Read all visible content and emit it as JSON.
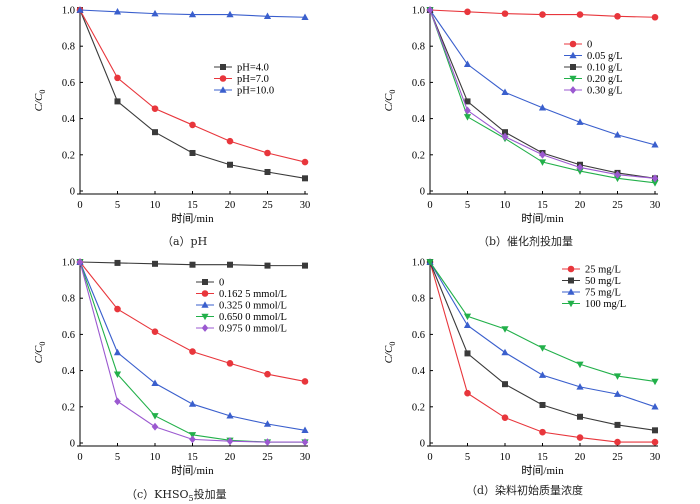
{
  "chart_data": [
    {
      "id": "a",
      "type": "line",
      "caption": "（a）pH",
      "xlabel": "时间/min",
      "ylabel": "C/C0",
      "xlim": [
        0,
        30
      ],
      "ylim": [
        0,
        1.0
      ],
      "xticks": [
        0,
        5,
        10,
        15,
        20,
        25,
        30
      ],
      "yticks": [
        0,
        0.2,
        0.4,
        0.6,
        0.8,
        1.0
      ],
      "x": [
        0,
        5,
        10,
        15,
        20,
        25,
        30
      ],
      "legend_position": "middle-right",
      "series": [
        {
          "name": "pH=4.0",
          "color": "#3a3a3a",
          "marker": "square",
          "values": [
            1.0,
            0.495,
            0.325,
            0.21,
            0.145,
            0.105,
            0.07
          ]
        },
        {
          "name": "pH=7.0",
          "color": "#e8363c",
          "marker": "circle",
          "values": [
            1.0,
            0.625,
            0.455,
            0.365,
            0.275,
            0.21,
            0.16
          ]
        },
        {
          "name": "pH=10.0",
          "color": "#3a5fcd",
          "marker": "triangle-up",
          "values": [
            1.0,
            0.99,
            0.98,
            0.975,
            0.975,
            0.965,
            0.96
          ]
        }
      ]
    },
    {
      "id": "b",
      "type": "line",
      "caption": "（b）催化剂投加量",
      "xlabel": "时间/min",
      "ylabel": "C/C0",
      "xlim": [
        0,
        30
      ],
      "ylim": [
        0,
        1.0
      ],
      "xticks": [
        0,
        5,
        10,
        15,
        20,
        25,
        30
      ],
      "yticks": [
        0,
        0.2,
        0.4,
        0.6,
        0.8,
        1.0
      ],
      "x": [
        0,
        5,
        10,
        15,
        20,
        25,
        30
      ],
      "legend_position": "upper-right",
      "series": [
        {
          "name": "0",
          "color": "#e8363c",
          "marker": "circle",
          "values": [
            1.0,
            0.99,
            0.98,
            0.975,
            0.975,
            0.965,
            0.96
          ]
        },
        {
          "name": "0.05 g/L",
          "color": "#3a5fcd",
          "marker": "triangle-up",
          "values": [
            1.0,
            0.7,
            0.545,
            0.46,
            0.38,
            0.31,
            0.255
          ]
        },
        {
          "name": "0.10 g/L",
          "color": "#3a3a3a",
          "marker": "square",
          "values": [
            1.0,
            0.495,
            0.325,
            0.21,
            0.145,
            0.1,
            0.07
          ]
        },
        {
          "name": "0.20 g/L",
          "color": "#22b04a",
          "marker": "triangle-down",
          "values": [
            1.0,
            0.41,
            0.29,
            0.16,
            0.11,
            0.07,
            0.045
          ]
        },
        {
          "name": "0.30 g/L",
          "color": "#9b59d0",
          "marker": "diamond",
          "values": [
            1.0,
            0.445,
            0.3,
            0.2,
            0.13,
            0.09,
            0.07
          ]
        }
      ]
    },
    {
      "id": "c",
      "type": "line",
      "caption": "（c）KHSO5投加量",
      "caption_main": "（c）KHSO",
      "caption_sub": "5",
      "caption_tail": "投加量",
      "xlabel": "时间/min",
      "ylabel": "C/C0",
      "xlim": [
        0,
        30
      ],
      "ylim": [
        0,
        1.0
      ],
      "xticks": [
        0,
        5,
        10,
        15,
        20,
        25,
        30
      ],
      "yticks": [
        0,
        0.2,
        0.4,
        0.6,
        0.8,
        1.0
      ],
      "x": [
        0,
        5,
        10,
        15,
        20,
        25,
        30
      ],
      "legend_position": "upper-right",
      "series": [
        {
          "name": "0",
          "color": "#3a3a3a",
          "marker": "square",
          "values": [
            1.0,
            0.995,
            0.99,
            0.985,
            0.985,
            0.98,
            0.98
          ]
        },
        {
          "name": "0.162 5 mmol/L",
          "color": "#e8363c",
          "marker": "circle",
          "values": [
            1.0,
            0.74,
            0.615,
            0.505,
            0.44,
            0.38,
            0.34
          ]
        },
        {
          "name": "0.325 0 mmol/L",
          "color": "#3a5fcd",
          "marker": "triangle-up",
          "values": [
            1.0,
            0.5,
            0.33,
            0.215,
            0.15,
            0.105,
            0.07
          ]
        },
        {
          "name": "0.650 0 mmol/L",
          "color": "#22b04a",
          "marker": "triangle-down",
          "values": [
            1.0,
            0.38,
            0.15,
            0.045,
            0.015,
            0.005,
            0.005
          ]
        },
        {
          "name": "0.975 0  mmol/L",
          "color": "#9b59d0",
          "marker": "diamond",
          "values": [
            1.0,
            0.23,
            0.09,
            0.02,
            0.01,
            0.005,
            0.005
          ]
        }
      ]
    },
    {
      "id": "d",
      "type": "line",
      "caption": "（d）染料初始质量浓度",
      "xlabel": "时间/min",
      "ylabel": "C/C0",
      "xlim": [
        0,
        30
      ],
      "ylim": [
        0,
        1.0
      ],
      "xticks": [
        0,
        5,
        10,
        15,
        20,
        25,
        30
      ],
      "yticks": [
        0,
        0.2,
        0.4,
        0.6,
        0.8,
        1.0
      ],
      "x": [
        0,
        5,
        10,
        15,
        20,
        25,
        30
      ],
      "legend_position": "upper-right",
      "series": [
        {
          "name": "25 mg/L",
          "color": "#e8363c",
          "marker": "circle",
          "values": [
            1.0,
            0.275,
            0.14,
            0.06,
            0.03,
            0.005,
            0.005
          ]
        },
        {
          "name": "50 mg/L",
          "color": "#3a3a3a",
          "marker": "square",
          "values": [
            1.0,
            0.495,
            0.325,
            0.21,
            0.145,
            0.1,
            0.07
          ]
        },
        {
          "name": "75 mg/L",
          "color": "#3a5fcd",
          "marker": "triangle-up",
          "values": [
            1.0,
            0.65,
            0.5,
            0.375,
            0.31,
            0.27,
            0.2
          ]
        },
        {
          "name": "100 mg/L",
          "color": "#22b04a",
          "marker": "triangle-down",
          "values": [
            1.0,
            0.7,
            0.63,
            0.525,
            0.435,
            0.37,
            0.34
          ]
        }
      ]
    }
  ]
}
